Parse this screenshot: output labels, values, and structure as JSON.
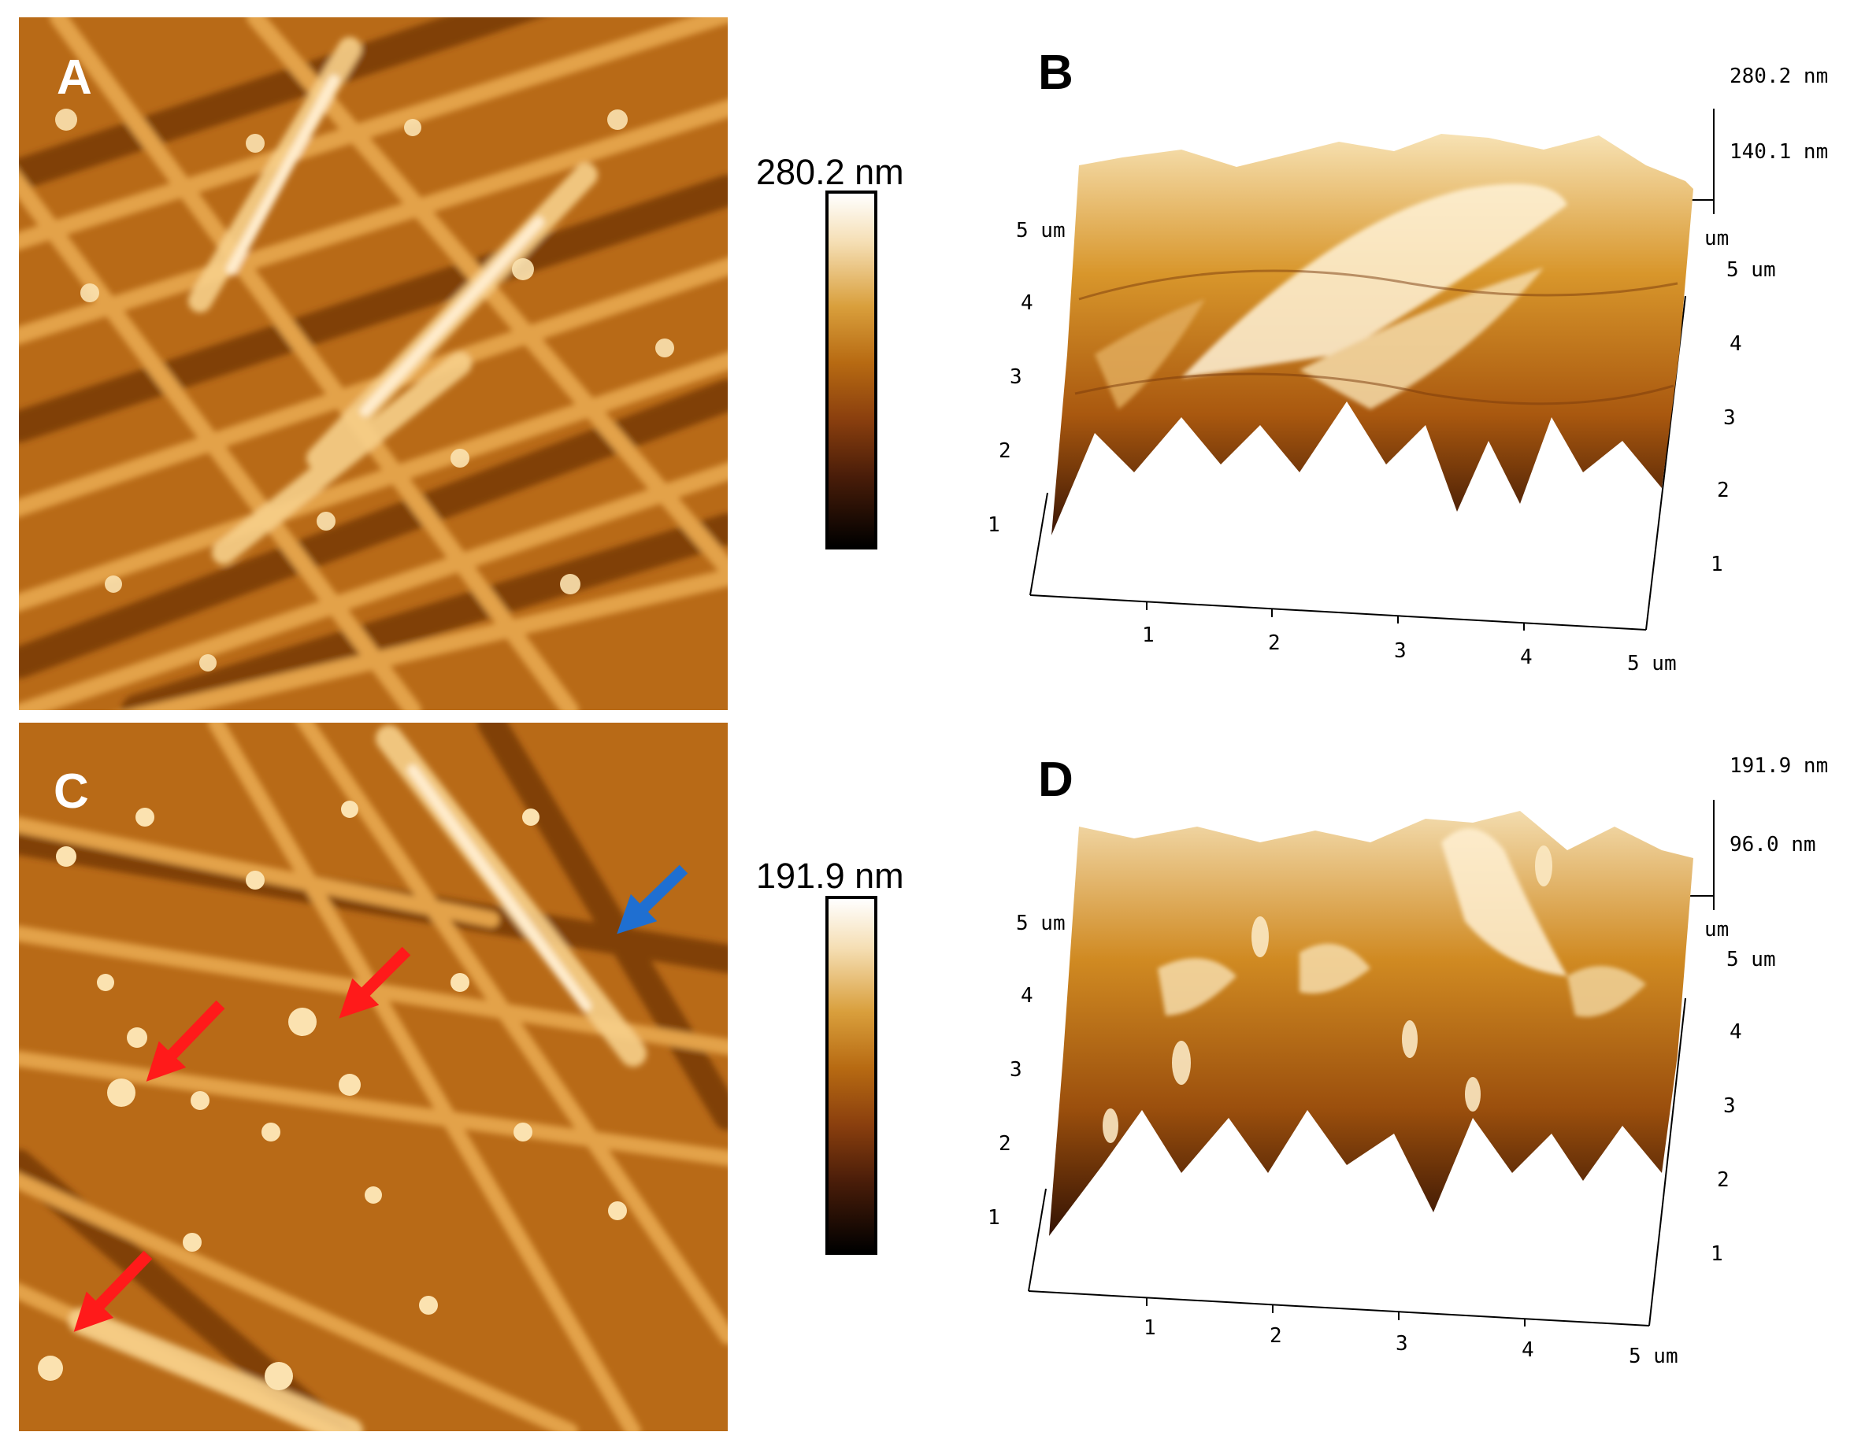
{
  "panels": {
    "a": {
      "letter": "A"
    },
    "b": {
      "letter": "B",
      "z_max": "280.2 nm",
      "z_mid": "140.1 nm",
      "x_ticks": [
        "1",
        "2",
        "3",
        "4",
        "5 um"
      ],
      "y_ticks": [
        "1",
        "2",
        "3",
        "4",
        "5 um"
      ],
      "left_ticks": [
        "1",
        "2",
        "3",
        "4",
        "5 um"
      ],
      "corner_unit": "um"
    },
    "c": {
      "letter": "C"
    },
    "d": {
      "letter": "D",
      "z_max": "191.9 nm",
      "z_mid": "96.0 nm",
      "x_ticks": [
        "1",
        "2",
        "3",
        "4",
        "5 um"
      ],
      "y_ticks": [
        "1",
        "2",
        "3",
        "4",
        "5 um"
      ],
      "left_ticks": [
        "1",
        "2",
        "3",
        "4",
        "5 um"
      ],
      "corner_unit": "um"
    }
  },
  "scalebars": {
    "top": {
      "label": "280.2 nm"
    },
    "bottom": {
      "label": "191.9 nm"
    }
  },
  "arrows": {
    "red_count": 3,
    "blue_count": 1,
    "red_color": "#ff1a1a",
    "blue_color": "#1f6fd1"
  },
  "colors": {
    "afm_light": "#f7d08a",
    "afm_mid": "#c97a1d",
    "afm_dark": "#5a2608"
  }
}
